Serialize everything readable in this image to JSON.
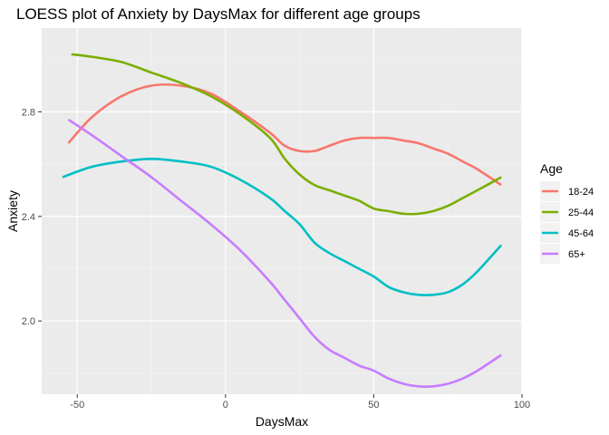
{
  "chart_data": {
    "type": "line",
    "title": "LOESS plot of Anxiety by DaysMax for different age groups",
    "xlabel": "DaysMax",
    "ylabel": "Anxiety",
    "xlim": [
      -62,
      100
    ],
    "ylim": [
      1.72,
      3.12
    ],
    "xticks": [
      -50,
      0,
      50,
      100
    ],
    "yticks": [
      2.0,
      2.4,
      2.8
    ],
    "ytick_labels": [
      "2.0",
      "2.4",
      "2.8"
    ],
    "grid": true,
    "legend": {
      "title": "Age",
      "placement": "right"
    },
    "series": [
      {
        "name": "18-24",
        "color": "#F8766D",
        "x": [
          -53,
          -45,
          -35,
          -25,
          -15,
          -5,
          5,
          15,
          20,
          25,
          30,
          35,
          40,
          45,
          50,
          55,
          60,
          65,
          70,
          75,
          80,
          85,
          93
        ],
        "y": [
          2.68,
          2.78,
          2.86,
          2.9,
          2.9,
          2.87,
          2.8,
          2.72,
          2.67,
          2.65,
          2.65,
          2.67,
          2.69,
          2.7,
          2.7,
          2.7,
          2.69,
          2.68,
          2.66,
          2.64,
          2.61,
          2.58,
          2.52
        ]
      },
      {
        "name": "25-44",
        "color": "#7CAE00",
        "x": [
          -52,
          -45,
          -35,
          -25,
          -15,
          -5,
          5,
          15,
          20,
          25,
          30,
          35,
          40,
          45,
          50,
          55,
          60,
          65,
          70,
          75,
          80,
          85,
          93
        ],
        "y": [
          3.02,
          3.01,
          2.99,
          2.95,
          2.91,
          2.86,
          2.79,
          2.7,
          2.62,
          2.56,
          2.52,
          2.5,
          2.48,
          2.46,
          2.43,
          2.42,
          2.41,
          2.41,
          2.42,
          2.44,
          2.47,
          2.5,
          2.55
        ]
      },
      {
        "name": "45-64",
        "color": "#00BFC4",
        "x": [
          -55,
          -45,
          -35,
          -25,
          -15,
          -5,
          5,
          15,
          20,
          25,
          30,
          35,
          40,
          45,
          50,
          55,
          60,
          65,
          70,
          75,
          80,
          85,
          93
        ],
        "y": [
          2.55,
          2.59,
          2.61,
          2.62,
          2.61,
          2.59,
          2.54,
          2.47,
          2.42,
          2.37,
          2.3,
          2.26,
          2.23,
          2.2,
          2.17,
          2.13,
          2.11,
          2.1,
          2.1,
          2.11,
          2.14,
          2.19,
          2.29
        ]
      },
      {
        "name": "65+",
        "color": "#C77CFF",
        "x": [
          -53,
          -45,
          -35,
          -25,
          -15,
          -5,
          5,
          15,
          20,
          25,
          30,
          35,
          40,
          45,
          50,
          55,
          60,
          65,
          70,
          75,
          80,
          85,
          93
        ],
        "y": [
          2.77,
          2.71,
          2.63,
          2.55,
          2.46,
          2.37,
          2.27,
          2.15,
          2.08,
          2.01,
          1.94,
          1.89,
          1.86,
          1.83,
          1.81,
          1.78,
          1.76,
          1.75,
          1.75,
          1.76,
          1.78,
          1.81,
          1.87
        ]
      }
    ]
  }
}
